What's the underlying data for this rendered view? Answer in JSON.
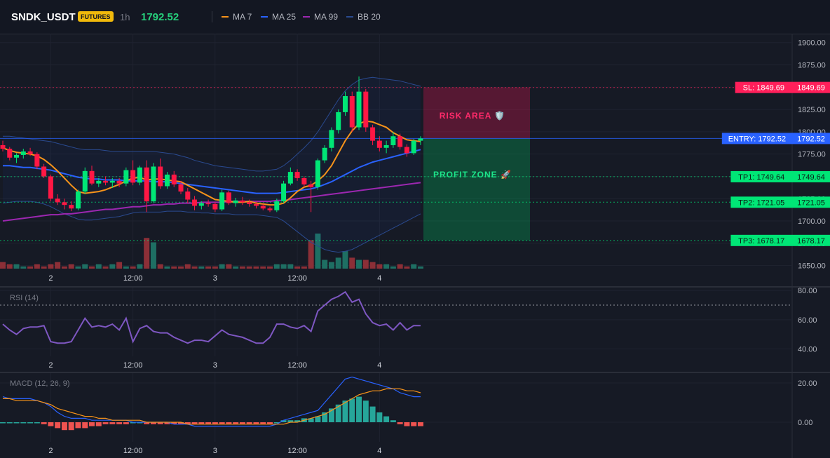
{
  "header": {
    "symbol": "SNDK_USDT",
    "badge": "FUTURES",
    "timeframe": "1h",
    "price": "1792.52",
    "legend": [
      {
        "label": "MA 7",
        "color": "#f7931a"
      },
      {
        "label": "MA 25",
        "color": "#2962ff"
      },
      {
        "label": "MA 99",
        "color": "#9c27b0"
      },
      {
        "label": "BB 20",
        "color": "#2a4a8f"
      }
    ]
  },
  "colors": {
    "up": "#26a69a",
    "down": "#ef5350",
    "upBright": "#00e676",
    "downBright": "#ff1744"
  },
  "x_axis": {
    "labels": [
      {
        "text": "2",
        "index": 7
      },
      {
        "text": "12:00",
        "index": 19
      },
      {
        "text": "3",
        "index": 31
      },
      {
        "text": "12:00",
        "index": 43
      },
      {
        "text": "4",
        "index": 55
      }
    ]
  },
  "chart_data": [
    {
      "type": "candlestick",
      "ylim": [
        1645,
        1910
      ],
      "y_ticks": [
        1650,
        1675,
        1700,
        1725,
        1750,
        1775,
        1800,
        1825,
        1850,
        1875,
        1900
      ],
      "y_tick_labels": [
        "1650.00",
        "1675.00",
        "1700.00",
        "1725.00",
        "1750.00",
        "1775.00",
        "1800.00",
        "1825.00",
        "1850.00",
        "1875.00",
        "1900.00"
      ],
      "candles": [
        [
          1785,
          1790,
          1778,
          1781
        ],
        [
          1781,
          1783,
          1768,
          1771
        ],
        [
          1771,
          1776,
          1765,
          1774
        ],
        [
          1774,
          1781,
          1770,
          1778
        ],
        [
          1778,
          1782,
          1773,
          1775
        ],
        [
          1775,
          1777,
          1758,
          1761
        ],
        [
          1761,
          1764,
          1748,
          1750
        ],
        [
          1750,
          1752,
          1722,
          1725
        ],
        [
          1725,
          1730,
          1718,
          1721
        ],
        [
          1721,
          1725,
          1713,
          1718
        ],
        [
          1718,
          1722,
          1711,
          1714
        ],
        [
          1714,
          1735,
          1712,
          1733
        ],
        [
          1733,
          1760,
          1730,
          1756
        ],
        [
          1756,
          1762,
          1740,
          1742
        ],
        [
          1742,
          1748,
          1738,
          1745
        ],
        [
          1745,
          1750,
          1740,
          1743
        ],
        [
          1743,
          1748,
          1737,
          1745
        ],
        [
          1745,
          1748,
          1738,
          1742
        ],
        [
          1742,
          1760,
          1739,
          1757
        ],
        [
          1757,
          1768,
          1740,
          1743
        ],
        [
          1743,
          1762,
          1740,
          1760
        ],
        [
          1760,
          1768,
          1710,
          1722
        ],
        [
          1722,
          1765,
          1720,
          1761
        ],
        [
          1761,
          1770,
          1736,
          1739
        ],
        [
          1739,
          1755,
          1736,
          1752
        ],
        [
          1752,
          1756,
          1738,
          1741
        ],
        [
          1741,
          1745,
          1730,
          1733
        ],
        [
          1733,
          1737,
          1720,
          1724
        ],
        [
          1724,
          1728,
          1712,
          1717
        ],
        [
          1717,
          1722,
          1713,
          1720
        ],
        [
          1720,
          1724,
          1716,
          1719
        ],
        [
          1719,
          1721,
          1710,
          1713
        ],
        [
          1713,
          1735,
          1711,
          1732
        ],
        [
          1732,
          1734,
          1718,
          1720
        ],
        [
          1720,
          1726,
          1716,
          1723
        ],
        [
          1723,
          1727,
          1718,
          1721
        ],
        [
          1721,
          1724,
          1716,
          1719
        ],
        [
          1719,
          1722,
          1714,
          1717
        ],
        [
          1717,
          1719,
          1712,
          1714
        ],
        [
          1714,
          1716,
          1710,
          1712
        ],
        [
          1712,
          1725,
          1710,
          1722
        ],
        [
          1722,
          1745,
          1720,
          1742
        ],
        [
          1742,
          1760,
          1740,
          1755
        ],
        [
          1755,
          1758,
          1745,
          1748
        ],
        [
          1748,
          1750,
          1738,
          1741
        ],
        [
          1741,
          1745,
          1710,
          1738
        ],
        [
          1738,
          1770,
          1735,
          1768
        ],
        [
          1768,
          1785,
          1765,
          1782
        ],
        [
          1782,
          1805,
          1778,
          1802
        ],
        [
          1802,
          1825,
          1798,
          1822
        ],
        [
          1822,
          1845,
          1818,
          1840
        ],
        [
          1840,
          1845,
          1800,
          1805
        ],
        [
          1805,
          1862,
          1802,
          1845
        ],
        [
          1845,
          1848,
          1800,
          1805
        ],
        [
          1805,
          1808,
          1785,
          1790
        ],
        [
          1790,
          1795,
          1778,
          1782
        ],
        [
          1782,
          1790,
          1776,
          1785
        ],
        [
          1785,
          1800,
          1782,
          1795
        ],
        [
          1795,
          1798,
          1780,
          1783
        ],
        [
          1783,
          1786,
          1772,
          1776
        ],
        [
          1776,
          1792,
          1774,
          1790
        ],
        [
          1790,
          1795,
          1785,
          1792.52
        ]
      ],
      "ma7": [
        1782,
        1779,
        1777,
        1776,
        1775,
        1773,
        1769,
        1763,
        1756,
        1748,
        1740,
        1733,
        1731,
        1732,
        1733,
        1735,
        1738,
        1741,
        1745,
        1748,
        1749,
        1746,
        1747,
        1747,
        1746,
        1745,
        1744,
        1740,
        1736,
        1732,
        1728,
        1724,
        1723,
        1722,
        1721,
        1721,
        1722,
        1720,
        1719,
        1718,
        1718,
        1720,
        1726,
        1733,
        1738,
        1740,
        1745,
        1752,
        1762,
        1776,
        1790,
        1801,
        1809,
        1812,
        1811,
        1808,
        1805,
        1799,
        1795,
        1791,
        1790,
        1789
      ],
      "ma25": [
        1762,
        1762,
        1761,
        1760,
        1760,
        1759,
        1758,
        1757,
        1755,
        1753,
        1751,
        1749,
        1748,
        1747,
        1747,
        1746,
        1746,
        1746,
        1745,
        1745,
        1745,
        1745,
        1744,
        1744,
        1744,
        1743,
        1742,
        1741,
        1740,
        1739,
        1738,
        1737,
        1736,
        1735,
        1734,
        1733,
        1732,
        1731,
        1731,
        1731,
        1731,
        1732,
        1733,
        1734,
        1735,
        1736,
        1738,
        1741,
        1744,
        1748,
        1752,
        1756,
        1760,
        1763,
        1766,
        1768,
        1770,
        1772,
        1774,
        1776,
        1778,
        1780
      ],
      "ma99": [
        1700,
        1701,
        1702,
        1703,
        1704,
        1705,
        1706,
        1707,
        1707,
        1708,
        1708,
        1709,
        1710,
        1711,
        1712,
        1713,
        1713,
        1714,
        1715,
        1716,
        1716,
        1717,
        1718,
        1718,
        1719,
        1719,
        1720,
        1720,
        1720,
        1721,
        1721,
        1721,
        1721,
        1722,
        1722,
        1722,
        1722,
        1722,
        1722,
        1722,
        1723,
        1723,
        1724,
        1725,
        1726,
        1727,
        1728,
        1729,
        1730,
        1731,
        1732,
        1733,
        1734,
        1735,
        1736,
        1737,
        1738,
        1739,
        1740,
        1741,
        1742,
        1743
      ],
      "bb_upper": [
        1795,
        1795,
        1794,
        1793,
        1792,
        1791,
        1790,
        1789,
        1787,
        1785,
        1783,
        1781,
        1780,
        1780,
        1780,
        1779,
        1778,
        1778,
        1778,
        1778,
        1778,
        1778,
        1778,
        1777,
        1776,
        1775,
        1773,
        1771,
        1768,
        1766,
        1764,
        1762,
        1761,
        1760,
        1759,
        1758,
        1757,
        1756,
        1756,
        1757,
        1758,
        1762,
        1768,
        1775,
        1782,
        1790,
        1800,
        1812,
        1824,
        1836,
        1846,
        1853,
        1858,
        1860,
        1861,
        1860,
        1859,
        1858,
        1857,
        1855,
        1853,
        1851
      ],
      "bb_lower": [
        1720,
        1721,
        1722,
        1722,
        1722,
        1721,
        1719,
        1716,
        1712,
        1708,
        1705,
        1702,
        1701,
        1701,
        1702,
        1703,
        1704,
        1705,
        1707,
        1709,
        1710,
        1710,
        1710,
        1710,
        1711,
        1711,
        1711,
        1710,
        1710,
        1709,
        1709,
        1708,
        1708,
        1708,
        1707,
        1707,
        1707,
        1707,
        1706,
        1705,
        1704,
        1700,
        1694,
        1688,
        1682,
        1676,
        1672,
        1668,
        1666,
        1665,
        1666,
        1668,
        1672,
        1676,
        1680,
        1684,
        1688,
        1692,
        1696,
        1700,
        1704,
        1708
      ],
      "volume": [
        3,
        2,
        2,
        1,
        1,
        2,
        1,
        2,
        3,
        1,
        2,
        1,
        2,
        1,
        2,
        1,
        2,
        3,
        1,
        1,
        2,
        14,
        12,
        2,
        1,
        1,
        1,
        2,
        1,
        1,
        1,
        1,
        2,
        2,
        1,
        1,
        1,
        1,
        1,
        1,
        2,
        2,
        2,
        1,
        1,
        13,
        16,
        4,
        3,
        5,
        8,
        5,
        4,
        4,
        3,
        2,
        2,
        1,
        2,
        1,
        2,
        1
      ],
      "levels": {
        "sl": {
          "value": 1849.69,
          "label": "SL: 1849.69",
          "price": "1849.69",
          "color": "#ff1f5a"
        },
        "entry": {
          "value": 1792.52,
          "label": "ENTRY: 1792.52",
          "price": "1792.52",
          "color": "#2962ff"
        },
        "tp1": {
          "value": 1749.64,
          "label": "TP1: 1749.64",
          "price": "1749.64",
          "color": "#00e676"
        },
        "tp2": {
          "value": 1721.05,
          "label": "TP2: 1721.05",
          "price": "1721.05",
          "color": "#00e676"
        },
        "tp3": {
          "value": 1678.17,
          "label": "TP3: 1678.17",
          "price": "1678.17",
          "color": "#00e676"
        }
      },
      "zones": {
        "risk_label": "RISK AREA 🛡️",
        "profit_label": "PROFIT ZONE 🚀"
      }
    },
    {
      "type": "line",
      "title": "RSI (14)",
      "ylim": [
        35,
        82
      ],
      "y_ticks": [
        40,
        60,
        80
      ],
      "y_tick_labels": [
        "40.00",
        "60.00",
        "80.00"
      ],
      "overbought": 70,
      "values": [
        57,
        53,
        50,
        54,
        55,
        55,
        56,
        45,
        44,
        44,
        45,
        53,
        61,
        55,
        56,
        55,
        57,
        53,
        61,
        45,
        54,
        56,
        52,
        51,
        51,
        48,
        46,
        44,
        46,
        46,
        45,
        49,
        53,
        50,
        49,
        48,
        46,
        44,
        44,
        48,
        57,
        57,
        55,
        54,
        56,
        52,
        66,
        70,
        74,
        76,
        79,
        72,
        74,
        64,
        58,
        56,
        57,
        53,
        58,
        53,
        56,
        56
      ],
      "color": "#7e57c2"
    },
    {
      "type": "bar",
      "title": "MACD (12, 26, 9)",
      "ylim": [
        -10,
        25
      ],
      "y_ticks": [
        0,
        20
      ],
      "y_tick_labels": [
        "0.00",
        "20.00"
      ],
      "histogram": [
        0,
        0,
        0,
        0,
        0,
        0,
        -1,
        -2,
        -3,
        -4,
        -4,
        -3,
        -3,
        -2,
        -2,
        -1,
        -1,
        -1,
        -1,
        0,
        0,
        -1,
        -1,
        -1,
        -1,
        -1,
        -1,
        -1,
        -1,
        -1,
        -1,
        -1,
        -1,
        -1,
        -1,
        -1,
        -1,
        -1,
        -1,
        -1,
        0,
        1,
        1,
        1,
        2,
        2,
        3,
        5,
        7,
        9,
        11,
        12,
        13,
        11,
        8,
        5,
        3,
        1,
        -1,
        -2,
        -2,
        -2
      ],
      "macd": [
        13,
        12,
        12,
        12,
        12,
        11,
        10,
        8,
        5,
        3,
        2,
        2,
        2,
        1,
        1,
        1,
        1,
        1,
        1,
        0,
        0,
        0,
        0,
        0,
        0,
        -1,
        -1,
        -1,
        -2,
        -2,
        -2,
        -2,
        -2,
        -2,
        -2,
        -2,
        -2,
        -2,
        -2,
        -2,
        -1,
        1,
        2,
        3,
        4,
        5,
        6,
        10,
        14,
        18,
        22,
        23,
        22,
        21,
        20,
        19,
        18,
        17,
        15,
        14,
        13,
        13
      ],
      "signal": [
        12,
        12,
        11,
        11,
        11,
        11,
        10,
        9,
        7,
        6,
        5,
        4,
        3,
        3,
        2,
        2,
        1,
        1,
        1,
        1,
        1,
        0,
        0,
        0,
        0,
        0,
        0,
        -1,
        -1,
        -1,
        -1,
        -1,
        -1,
        -1,
        -1,
        -1,
        -1,
        -1,
        -1,
        -1,
        -1,
        -1,
        0,
        0,
        1,
        2,
        3,
        4,
        6,
        8,
        10,
        12,
        14,
        15,
        16,
        16,
        17,
        17,
        17,
        16,
        16,
        15
      ],
      "macd_color": "#2962ff",
      "signal_color": "#f7931a"
    }
  ]
}
